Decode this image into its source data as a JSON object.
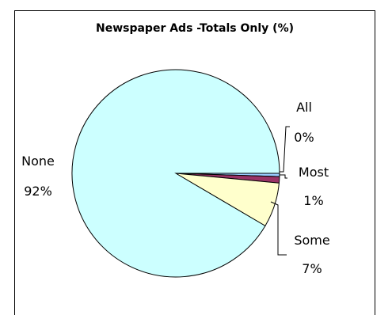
{
  "chart_data": {
    "type": "pie",
    "title": "Newspaper Ads -Totals Only (%)",
    "slices": [
      {
        "label": "All",
        "value": 0.5,
        "display": "0%",
        "color": "#99ccff"
      },
      {
        "label": "Most",
        "value": 1,
        "display": "1%",
        "color": "#993366"
      },
      {
        "label": "Some",
        "value": 7,
        "display": "7%",
        "color": "#ffffcc"
      },
      {
        "label": "None",
        "value": 92,
        "display": "92%",
        "color": "#ccffff"
      }
    ],
    "legend": "none",
    "data_labels": "category and percent, outside"
  }
}
